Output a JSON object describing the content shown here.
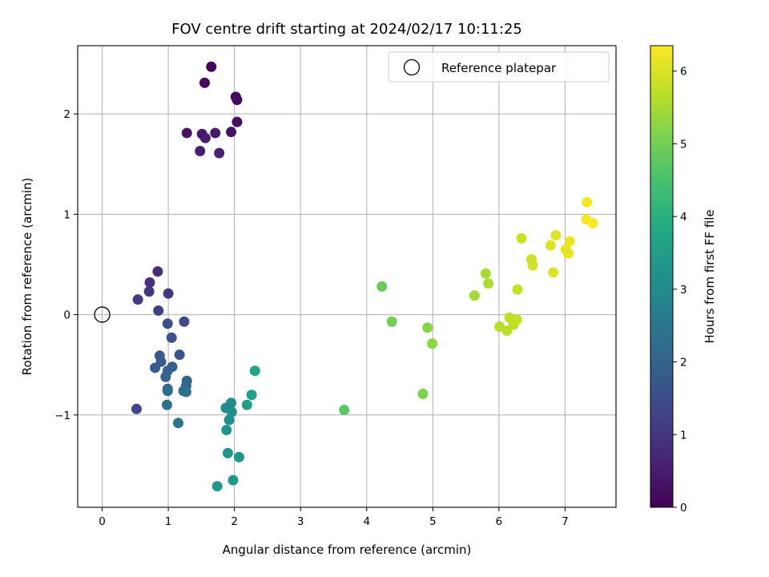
{
  "chart_data": {
    "type": "scatter",
    "title": "FOV centre drift starting at 2024/02/17 10:11:25",
    "xlabel": "Angular distance from reference (arcmin)",
    "ylabel": "Rotation from reference (arcmin)",
    "xlim": [
      -0.37,
      7.77
    ],
    "ylim": [
      -1.92,
      2.68
    ],
    "xticks": [
      0,
      1,
      2,
      3,
      4,
      5,
      6,
      7
    ],
    "yticks": [
      -1,
      0,
      1,
      2
    ],
    "xtick_labels": [
      "0",
      "1",
      "2",
      "3",
      "4",
      "5",
      "6",
      "7"
    ],
    "ytick_labels": [
      "−1",
      "0",
      "1",
      "2"
    ],
    "grid": true,
    "colormap": "viridis",
    "colorbar": {
      "label": "Hours from first FF file",
      "range": [
        0,
        6.35
      ],
      "ticks": [
        0,
        1,
        2,
        3,
        4,
        5,
        6
      ],
      "tick_labels": [
        "0",
        "1",
        "2",
        "3",
        "4",
        "5",
        "6"
      ]
    },
    "legend": {
      "placement": "top-right",
      "entries": [
        "Reference platepar"
      ]
    },
    "reference_point": {
      "x": 0,
      "y": 0
    },
    "series": [
      {
        "marker": "filled-circle",
        "points": [
          {
            "x": 1.65,
            "y": 2.47,
            "c": 0.05
          },
          {
            "x": 1.55,
            "y": 2.31,
            "c": 0.1
          },
          {
            "x": 2.02,
            "y": 2.17,
            "c": 0.15
          },
          {
            "x": 2.04,
            "y": 2.14,
            "c": 0.2
          },
          {
            "x": 2.04,
            "y": 1.92,
            "c": 0.25
          },
          {
            "x": 1.95,
            "y": 1.82,
            "c": 0.3
          },
          {
            "x": 1.28,
            "y": 1.81,
            "c": 0.35
          },
          {
            "x": 1.51,
            "y": 1.8,
            "c": 0.4
          },
          {
            "x": 1.71,
            "y": 1.81,
            "c": 0.45
          },
          {
            "x": 1.56,
            "y": 1.76,
            "c": 0.5
          },
          {
            "x": 1.48,
            "y": 1.63,
            "c": 0.55
          },
          {
            "x": 1.77,
            "y": 1.61,
            "c": 0.6
          },
          {
            "x": 0.84,
            "y": 0.43,
            "c": 0.8
          },
          {
            "x": 0.72,
            "y": 0.32,
            "c": 0.9
          },
          {
            "x": 0.71,
            "y": 0.23,
            "c": 1.0
          },
          {
            "x": 1.0,
            "y": 0.21,
            "c": 1.05
          },
          {
            "x": 0.54,
            "y": 0.15,
            "c": 1.1
          },
          {
            "x": 0.85,
            "y": 0.04,
            "c": 1.2
          },
          {
            "x": 0.52,
            "y": -0.94,
            "c": 1.3
          },
          {
            "x": 1.24,
            "y": -0.07,
            "c": 1.4
          },
          {
            "x": 0.99,
            "y": -0.09,
            "c": 1.5
          },
          {
            "x": 1.05,
            "y": -0.23,
            "c": 1.6
          },
          {
            "x": 1.17,
            "y": -0.4,
            "c": 1.7
          },
          {
            "x": 0.87,
            "y": -0.41,
            "c": 1.75
          },
          {
            "x": 0.89,
            "y": -0.47,
            "c": 1.8
          },
          {
            "x": 0.8,
            "y": -0.53,
            "c": 1.85
          },
          {
            "x": 1.06,
            "y": -0.52,
            "c": 1.9
          },
          {
            "x": 0.99,
            "y": -0.56,
            "c": 1.95
          },
          {
            "x": 0.96,
            "y": -0.62,
            "c": 2.0
          },
          {
            "x": 1.28,
            "y": -0.66,
            "c": 2.05
          },
          {
            "x": 1.27,
            "y": -0.71,
            "c": 2.1
          },
          {
            "x": 0.99,
            "y": -0.74,
            "c": 2.15
          },
          {
            "x": 1.23,
            "y": -0.76,
            "c": 2.2
          },
          {
            "x": 0.99,
            "y": -0.76,
            "c": 2.25
          },
          {
            "x": 1.27,
            "y": -0.77,
            "c": 2.3
          },
          {
            "x": 0.98,
            "y": -0.9,
            "c": 2.35
          },
          {
            "x": 1.15,
            "y": -1.08,
            "c": 2.4
          },
          {
            "x": 1.95,
            "y": -0.88,
            "c": 3.0
          },
          {
            "x": 1.87,
            "y": -0.93,
            "c": 3.05
          },
          {
            "x": 1.96,
            "y": -0.97,
            "c": 3.1
          },
          {
            "x": 1.92,
            "y": -1.05,
            "c": 3.15
          },
          {
            "x": 1.88,
            "y": -1.15,
            "c": 3.2
          },
          {
            "x": 1.9,
            "y": -1.38,
            "c": 3.25
          },
          {
            "x": 2.07,
            "y": -1.42,
            "c": 3.3
          },
          {
            "x": 1.98,
            "y": -1.65,
            "c": 3.35
          },
          {
            "x": 1.74,
            "y": -1.71,
            "c": 3.4
          },
          {
            "x": 2.19,
            "y": -0.9,
            "c": 3.5
          },
          {
            "x": 2.26,
            "y": -0.8,
            "c": 3.6
          },
          {
            "x": 2.31,
            "y": -0.56,
            "c": 3.7
          },
          {
            "x": 3.66,
            "y": -0.95,
            "c": 4.7
          },
          {
            "x": 4.23,
            "y": 0.28,
            "c": 4.9
          },
          {
            "x": 4.38,
            "y": -0.07,
            "c": 5.0
          },
          {
            "x": 4.85,
            "y": -0.79,
            "c": 5.1
          },
          {
            "x": 4.92,
            "y": -0.13,
            "c": 5.2
          },
          {
            "x": 4.99,
            "y": -0.29,
            "c": 5.25
          },
          {
            "x": 5.63,
            "y": 0.19,
            "c": 5.45
          },
          {
            "x": 5.8,
            "y": 0.41,
            "c": 5.5
          },
          {
            "x": 5.84,
            "y": 0.31,
            "c": 5.55
          },
          {
            "x": 6.01,
            "y": -0.12,
            "c": 5.65
          },
          {
            "x": 6.12,
            "y": -0.16,
            "c": 5.7
          },
          {
            "x": 6.16,
            "y": -0.03,
            "c": 5.72
          },
          {
            "x": 6.22,
            "y": -0.1,
            "c": 5.75
          },
          {
            "x": 6.27,
            "y": -0.05,
            "c": 5.78
          },
          {
            "x": 6.28,
            "y": 0.25,
            "c": 5.8
          },
          {
            "x": 6.34,
            "y": 0.76,
            "c": 5.85
          },
          {
            "x": 6.49,
            "y": 0.55,
            "c": 5.9
          },
          {
            "x": 6.51,
            "y": 0.49,
            "c": 5.93
          },
          {
            "x": 6.78,
            "y": 0.69,
            "c": 6.0
          },
          {
            "x": 6.82,
            "y": 0.42,
            "c": 6.02
          },
          {
            "x": 6.86,
            "y": 0.79,
            "c": 6.05
          },
          {
            "x": 7.01,
            "y": 0.65,
            "c": 6.1
          },
          {
            "x": 7.05,
            "y": 0.61,
            "c": 6.12
          },
          {
            "x": 7.07,
            "y": 0.73,
            "c": 6.15
          },
          {
            "x": 7.32,
            "y": 0.95,
            "c": 6.25
          },
          {
            "x": 7.33,
            "y": 1.12,
            "c": 6.3
          },
          {
            "x": 7.42,
            "y": 0.91,
            "c": 6.33
          }
        ]
      }
    ]
  }
}
